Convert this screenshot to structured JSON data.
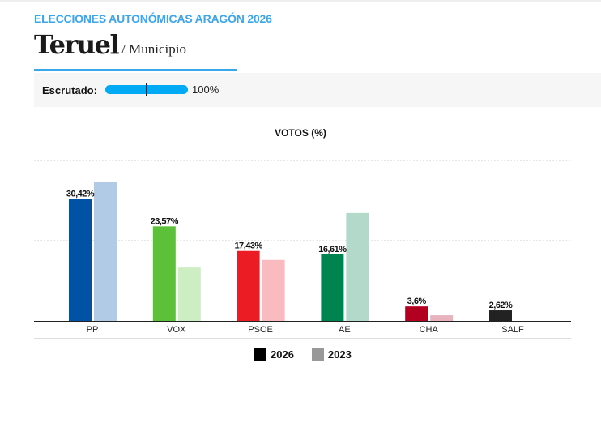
{
  "header": {
    "kicker": "ELECCIONES AUTONÓMICAS ARAGÓN 2026",
    "title": "Teruel",
    "subtitle": "/ Municipio"
  },
  "scrutiny": {
    "label": "Escrutado:",
    "value_percent": 100,
    "value_text": "100%"
  },
  "chart_data": {
    "type": "bar",
    "title": "VOTOS (%)",
    "categories": [
      "PP",
      "VOX",
      "PSOE",
      "AE",
      "CHA",
      "SALF"
    ],
    "ylim": [
      0,
      40
    ],
    "grid": true,
    "legend_placement": "bottom",
    "series": [
      {
        "name": "2026",
        "values": [
          30.42,
          23.57,
          17.43,
          16.61,
          3.6,
          2.62
        ],
        "labels": [
          "30,42%",
          "23,57%",
          "17,43%",
          "16,61%",
          "3,6%",
          "2,62%"
        ],
        "colors": [
          "#0152a5",
          "#5cc138",
          "#ec1c25",
          "#00844f",
          "#b20020",
          "#222222"
        ]
      },
      {
        "name": "2023",
        "values": [
          34.7,
          13.3,
          15.2,
          26.9,
          1.4,
          null
        ],
        "colors": [
          "#b1cae6",
          "#cdedc3",
          "#f9bbbf",
          "#b2d9c9",
          "#e8b3bd",
          "#bbbbbb"
        ]
      }
    ],
    "legend_colors": {
      "2026": "#000000",
      "2023": "#999999"
    }
  }
}
